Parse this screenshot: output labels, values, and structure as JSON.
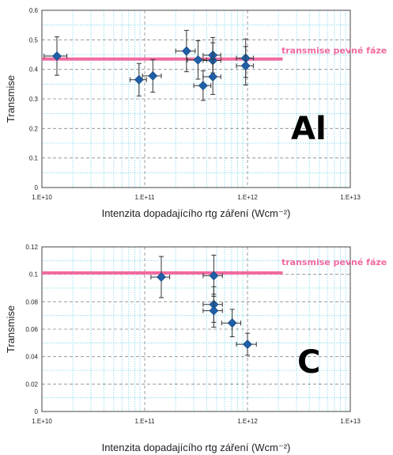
{
  "chart_data": [
    {
      "type": "scatter",
      "panel_tag": "Al",
      "xlabel": "Intenzita dopadajícího rtg záření (Wcm⁻²)",
      "ylabel": "Transmise",
      "x_scale": "log",
      "xlim": [
        10000000000.0,
        10000000000000.0
      ],
      "x_ticks": [
        10000000000.0,
        100000000000.0,
        1000000000000.0,
        10000000000000.0
      ],
      "x_tick_labels": [
        "1.E+10",
        "1.E+11",
        "1.E+12",
        "1.E+13"
      ],
      "ylim": [
        0,
        0.6
      ],
      "y_ticks": [
        0,
        0.1,
        0.2,
        0.3,
        0.4,
        0.5,
        0.6
      ],
      "y_tick_labels": [
        "0",
        "0.1",
        "0.2",
        "0.3",
        "0.4",
        "0.5",
        "0.6"
      ],
      "grid": true,
      "reference_line": {
        "y": 0.435,
        "x_range": [
          10000000000.0,
          2200000000000.0
        ],
        "label": "transmise pevné fáze",
        "color": "#f06aa0"
      },
      "marker_color": "#1f5fa8",
      "points": [
        {
          "x": 14000000000.0,
          "y": 0.445,
          "xerr": [
            3500000000.0,
            3500000000.0
          ],
          "yerr": 0.065
        },
        {
          "x": 88000000000.0,
          "y": 0.365,
          "xerr": [
            16000000000.0,
            16000000000.0
          ],
          "yerr": 0.055
        },
        {
          "x": 120000000000.0,
          "y": 0.378,
          "xerr": [
            25000000000.0,
            25000000000.0
          ],
          "yerr": 0.055
        },
        {
          "x": 255000000000.0,
          "y": 0.462,
          "xerr": [
            55000000000.0,
            55000000000.0
          ],
          "yerr": 0.07
        },
        {
          "x": 330000000000.0,
          "y": 0.432,
          "xerr": [
            70000000000.0,
            70000000000.0
          ],
          "yerr": 0.065
        },
        {
          "x": 370000000000.0,
          "y": 0.345,
          "xerr": [
            70000000000.0,
            70000000000.0
          ],
          "yerr": 0.05
        },
        {
          "x": 460000000000.0,
          "y": 0.448,
          "xerr": [
            90000000000.0,
            90000000000.0
          ],
          "yerr": 0.06
        },
        {
          "x": 460000000000.0,
          "y": 0.43,
          "xerr": [
            90000000000.0,
            90000000000.0
          ],
          "yerr": 0.06
        },
        {
          "x": 460000000000.0,
          "y": 0.375,
          "xerr": [
            90000000000.0,
            90000000000.0
          ],
          "yerr": 0.06
        },
        {
          "x": 960000000000.0,
          "y": 0.438,
          "xerr": [
            180000000000.0,
            180000000000.0
          ],
          "yerr": 0.065
        },
        {
          "x": 960000000000.0,
          "y": 0.412,
          "xerr": [
            180000000000.0,
            180000000000.0
          ],
          "yerr": 0.065
        }
      ]
    },
    {
      "type": "scatter",
      "panel_tag": "C",
      "xlabel": "Intenzita dopadajícího rtg záření (Wcm⁻²)",
      "ylabel": "Transmise",
      "x_scale": "log",
      "xlim": [
        10000000000.0,
        10000000000000.0
      ],
      "x_ticks": [
        10000000000.0,
        100000000000.0,
        1000000000000.0,
        10000000000000.0
      ],
      "x_tick_labels": [
        "1.E+10",
        "1.E+11",
        "1.E+12",
        "1.E+13"
      ],
      "ylim": [
        0,
        0.12
      ],
      "y_ticks": [
        0,
        0.02,
        0.04,
        0.06,
        0.08,
        0.1,
        0.12
      ],
      "y_tick_labels": [
        "0",
        "0.02",
        "0.04",
        "0.06",
        "0.08",
        "0.1",
        "0.12"
      ],
      "grid": true,
      "reference_line": {
        "y": 0.101,
        "x_range": [
          10000000000.0,
          2200000000000.0
        ],
        "label": "transmise pevné fáze",
        "color": "#f06aa0"
      },
      "marker_color": "#1f5fa8",
      "points": [
        {
          "x": 145000000000.0,
          "y": 0.098,
          "xerr": [
            30000000000.0,
            30000000000.0
          ],
          "yerr": 0.015
        },
        {
          "x": 470000000000.0,
          "y": 0.099,
          "xerr": [
            100000000000.0,
            100000000000.0
          ],
          "yerr": 0.015
        },
        {
          "x": 470000000000.0,
          "y": 0.078,
          "xerr": [
            100000000000.0,
            100000000000.0
          ],
          "yerr": 0.013
        },
        {
          "x": 470000000000.0,
          "y": 0.0735,
          "xerr": [
            100000000000.0,
            100000000000.0
          ],
          "yerr": 0.012
        },
        {
          "x": 710000000000.0,
          "y": 0.0645,
          "xerr": [
            150000000000.0,
            150000000000.0
          ],
          "yerr": 0.01
        },
        {
          "x": 1000000000000.0,
          "y": 0.049,
          "xerr": [
            220000000000.0,
            220000000000.0
          ],
          "yerr": 0.008
        }
      ]
    }
  ]
}
